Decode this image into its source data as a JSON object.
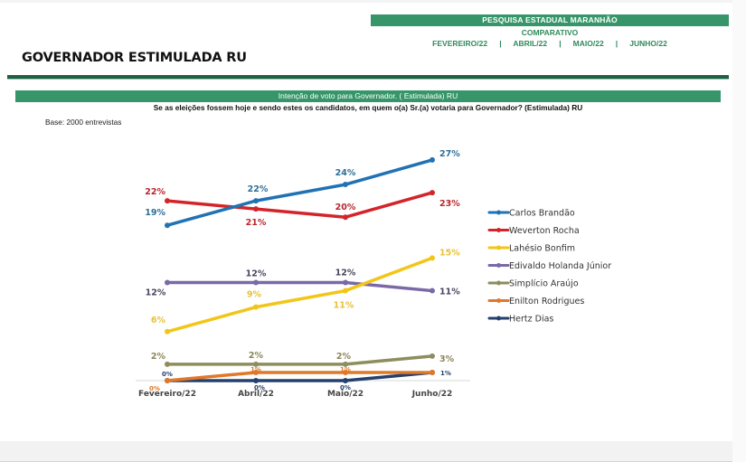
{
  "header": {
    "survey_title": "PESQUISA ESTADUAL MARANHÃO",
    "subtitle": "COMPARATIVO",
    "months_line": "FEVEREIRO/22   |   ABRIL/22   |   MAIO/22   |   JUNHO/22",
    "page_title": "GOVERNADOR ESTIMULADA RU"
  },
  "chart_header": {
    "title": "Intenção de voto para Governador. ( Estimulada) RU",
    "question": "Se as eleições fossem hoje e sendo estes os candidatos, em quem o(a) Sr.(a) votaria para Governador? (Estimulada) RU",
    "base": "Base: 2000 entrevistas"
  },
  "colors": {
    "brand_green": "#36966a",
    "dark_green": "#1f5f45"
  },
  "chart_data": {
    "type": "line",
    "title": "Intenção de voto para Governador. ( Estimulada) RU",
    "xlabel": "",
    "ylabel": "",
    "ylim": [
      0,
      27
    ],
    "grid": false,
    "legend_position": "right",
    "categories": [
      "Fevereiro/22",
      "Abril/22",
      "Maio/22",
      "Junho/22"
    ],
    "series": [
      {
        "name": "Carlos Brandão",
        "color": "#2172b4",
        "values": [
          19,
          22,
          24,
          27
        ],
        "labels": [
          "19%",
          "22%",
          "24%",
          "27%"
        ]
      },
      {
        "name": "Weverton Rocha",
        "color": "#d4242a",
        "values": [
          22,
          21,
          20,
          23
        ],
        "labels": [
          "22%",
          "21%",
          "20%",
          "23%"
        ]
      },
      {
        "name": "Lahésio Bonfim",
        "color": "#f2c618",
        "values": [
          6,
          9,
          11,
          15
        ],
        "labels": [
          "6%",
          "9%",
          "11%",
          "15%"
        ]
      },
      {
        "name": "Edivaldo Holanda Júnior",
        "color": "#7b68a6",
        "values": [
          12,
          12,
          12,
          11
        ],
        "labels": [
          "12%",
          "12%",
          "12%",
          "11%"
        ]
      },
      {
        "name": "Simplício Araújo",
        "color": "#8e8d5e",
        "values": [
          2,
          2,
          2,
          3
        ],
        "labels": [
          "2%",
          "2%",
          "2%",
          "3%"
        ]
      },
      {
        "name": "Enilton Rodrigues",
        "color": "#e0782a",
        "values": [
          0,
          1,
          1,
          1
        ],
        "labels": [
          "0%",
          "1%",
          "1%",
          ""
        ]
      },
      {
        "name": "Hertz Dias",
        "color": "#24406e",
        "values": [
          0,
          0,
          0,
          1
        ],
        "labels": [
          "0%",
          "0%",
          "0%",
          "1%"
        ]
      }
    ]
  }
}
